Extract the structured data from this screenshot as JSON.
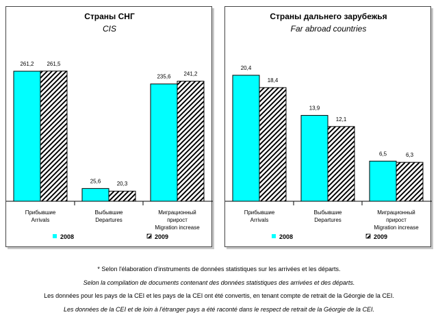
{
  "chart_data": [
    {
      "type": "bar",
      "title": "Страны СНГ",
      "subtitle": "CIS",
      "categories": [
        [
          "Прибывшие",
          "Arrivals"
        ],
        [
          "Выбывшие",
          "Departures"
        ],
        [
          "Миграционный",
          "прирост",
          "Migration increase"
        ]
      ],
      "series": [
        {
          "name": "2008",
          "values": [
            261.2,
            25.6,
            235.6
          ],
          "labels": [
            "261,2",
            "25,6",
            "235,6"
          ],
          "color": "#00ffff"
        },
        {
          "name": "2009",
          "values": [
            261.5,
            20.3,
            241.2
          ],
          "labels": [
            "261,5",
            "20,3",
            "241,2"
          ],
          "color": "#000000",
          "pattern": "diagonal-hatch"
        }
      ],
      "ylim": [
        0,
        330
      ],
      "legend": "bottom"
    },
    {
      "type": "bar",
      "title": "Страны дальнего зарубежья",
      "subtitle": "Far abroad countries",
      "categories": [
        [
          "Прибывшие",
          "Arrivals"
        ],
        [
          "Выбывшие",
          "Departures"
        ],
        [
          "Миграционный",
          "прирост",
          "Migration increase"
        ]
      ],
      "series": [
        {
          "name": "2008",
          "values": [
            20.4,
            13.9,
            6.5
          ],
          "labels": [
            "20,4",
            "13,9",
            "6,5"
          ],
          "color": "#00ffff"
        },
        {
          "name": "2009",
          "values": [
            18.4,
            12.1,
            6.3
          ],
          "labels": [
            "18,4",
            "12,1",
            "6,3"
          ],
          "color": "#000000",
          "pattern": "diagonal-hatch"
        }
      ],
      "ylim": [
        0,
        26.6
      ],
      "legend": "bottom"
    }
  ],
  "footnotes": [
    "* Selon l'élaboration d'instruments de données statistiques sur les arrivées et les départs.",
    "Selon la compilation de documents contenant des données statistiques des arrivées et des départs.",
    "Les données pour les pays de la CEI et les pays de la CEI ont été convertis, en tenant compte de retrait de la Géorgie de la CEI.",
    "Les données de la CEI et de loin à l'étranger pays a été raconté dans le respect de retrait de la Géorgie de la CEI."
  ]
}
